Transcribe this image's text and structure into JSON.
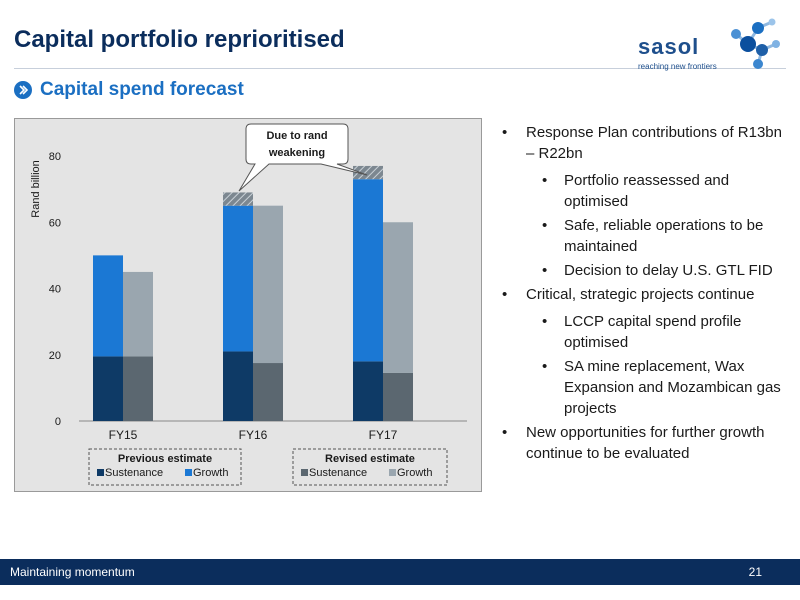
{
  "slide": {
    "title": "Capital portfolio reprioritised",
    "subtitle": "Capital spend forecast",
    "page_number": "21"
  },
  "logo": {
    "word": "sasol",
    "tagline": "reaching new frontiers"
  },
  "bullets": [
    {
      "text": "Response Plan contributions of R13bn – R22bn",
      "sub": [
        "Portfolio reassessed and optimised",
        "Safe, reliable operations to be maintained",
        "Decision to delay U.S. GTL FID"
      ]
    },
    {
      "text": "Critical, strategic projects continue",
      "sub": [
        "LCCP capital spend profile optimised",
        "SA mine replacement, Wax Expansion and Mozambican gas projects"
      ]
    },
    {
      "text": "New opportunities for further growth continue to be evaluated",
      "sub": []
    }
  ],
  "footer": {
    "text": "Maintaining momentum"
  },
  "colors": {
    "prev_sustenance": "#0e3a66",
    "prev_growth": "#1b78d4",
    "rev_sustenance": "#5b6770",
    "rev_growth": "#9aa6af"
  },
  "chart_data": {
    "type": "bar",
    "stacked": true,
    "ylabel": "Rand billion",
    "ylim": [
      0,
      80
    ],
    "yticks": [
      0,
      20,
      40,
      60,
      80
    ],
    "categories": [
      "FY15",
      "FY16",
      "FY17"
    ],
    "groups": [
      {
        "name": "Previous estimate",
        "series": [
          {
            "name": "Sustenance",
            "values": [
              19.5,
              21,
              18
            ]
          },
          {
            "name": "Growth",
            "values": [
              30.5,
              44,
              55
            ]
          }
        ],
        "rand_weakening": [
          0,
          4,
          4
        ]
      },
      {
        "name": "Revised estimate",
        "series": [
          {
            "name": "Sustenance",
            "values": [
              19.5,
              17.5,
              14.5
            ]
          },
          {
            "name": "Growth",
            "values": [
              25.5,
              47.5,
              45.5
            ]
          }
        ]
      }
    ],
    "annotation": "Due to rand weakening",
    "grid": false
  }
}
